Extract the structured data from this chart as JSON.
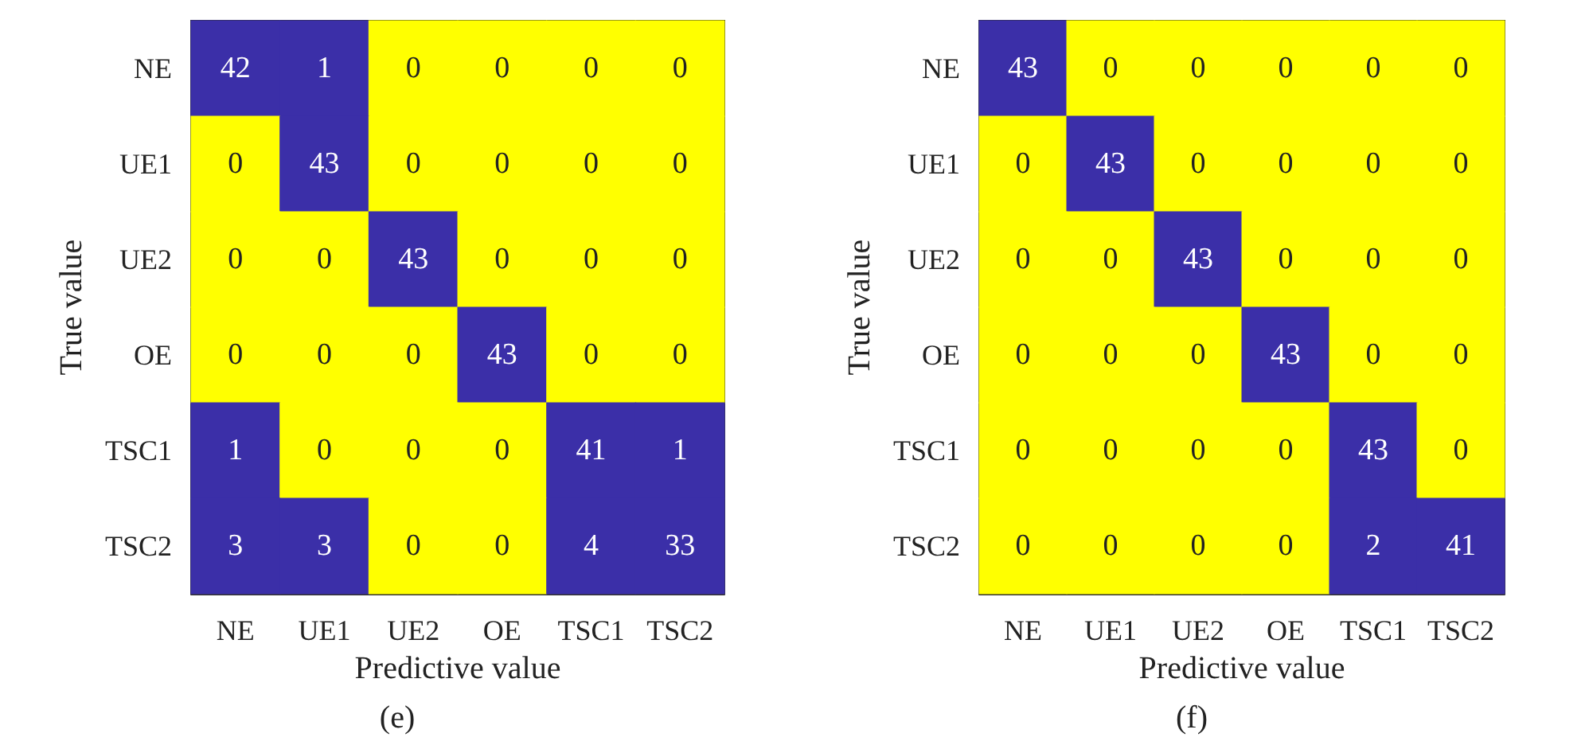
{
  "chart_data": [
    {
      "type": "heatmap",
      "title": "(e)",
      "xlabel": "Predictive value",
      "ylabel": "True value",
      "colors": [
        "#ffff00",
        "#3b2fa8"
      ],
      "categories": [
        "NE",
        "UE1",
        "UE2",
        "OE",
        "TSC1",
        "TSC2"
      ],
      "y_categories": [
        "NE",
        "UE1",
        "UE2",
        "OE",
        "TSC1",
        "TSC2"
      ],
      "cells": [
        [
          42,
          1,
          0,
          0,
          0,
          0
        ],
        [
          0,
          43,
          0,
          0,
          0,
          0
        ],
        [
          0,
          0,
          43,
          0,
          0,
          0
        ],
        [
          0,
          0,
          0,
          43,
          0,
          0
        ],
        [
          1,
          0,
          0,
          0,
          41,
          1
        ],
        [
          3,
          3,
          0,
          0,
          4,
          33
        ]
      ],
      "data_labels": true
    },
    {
      "type": "heatmap",
      "title": "(f)",
      "xlabel": "Predictive value",
      "ylabel": "True value",
      "colors": [
        "#ffff00",
        "#3b2fa8"
      ],
      "categories": [
        "NE",
        "UE1",
        "UE2",
        "OE",
        "TSC1",
        "TSC2"
      ],
      "y_categories": [
        "NE",
        "UE1",
        "UE2",
        "OE",
        "TSC1",
        "TSC2"
      ],
      "cells": [
        [
          43,
          0,
          0,
          0,
          0,
          0
        ],
        [
          0,
          43,
          0,
          0,
          0,
          0
        ],
        [
          0,
          0,
          43,
          0,
          0,
          0
        ],
        [
          0,
          0,
          0,
          43,
          0,
          0
        ],
        [
          0,
          0,
          0,
          0,
          43,
          0
        ],
        [
          0,
          0,
          0,
          0,
          2,
          41
        ]
      ],
      "data_labels": true
    }
  ]
}
